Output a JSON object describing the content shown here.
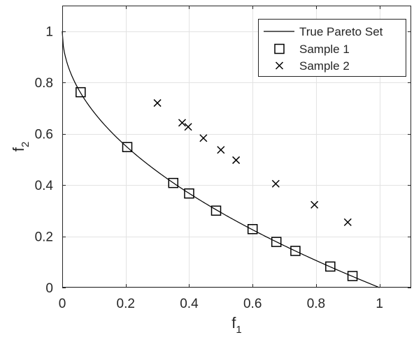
{
  "chart_data": {
    "type": "scatter",
    "title": "",
    "xlabel": "f",
    "xlabel_subscript": "1",
    "ylabel": "f",
    "ylabel_subscript": "2",
    "xlim": [
      0,
      1.1
    ],
    "ylim": [
      0,
      1.1
    ],
    "xticks": [
      0,
      0.2,
      0.4,
      0.6,
      0.8,
      1
    ],
    "yticks": [
      0,
      0.2,
      0.4,
      0.6,
      0.8,
      1
    ],
    "xtick_labels": [
      "0",
      "0.2",
      "0.4",
      "0.6",
      "0.8",
      "1"
    ],
    "ytick_labels": [
      "0",
      "0.2",
      "0.4",
      "0.6",
      "0.8",
      "1"
    ],
    "grid": true,
    "box": true,
    "legend_position": "top-right",
    "series": [
      {
        "name": "True Pareto Set",
        "kind": "curve",
        "marker": "line",
        "formula": "f2 = 1 - sqrt(f1)",
        "color": "#000000"
      },
      {
        "name": "Sample 1",
        "kind": "points",
        "marker": "square",
        "color": "#000000",
        "x": [
          0.058,
          0.205,
          0.35,
          0.4,
          0.485,
          0.6,
          0.675,
          0.735,
          0.845,
          0.915
        ],
        "y": [
          0.762,
          0.548,
          0.408,
          0.367,
          0.3,
          0.228,
          0.178,
          0.143,
          0.082,
          0.045
        ]
      },
      {
        "name": "Sample 2",
        "kind": "points",
        "marker": "x",
        "color": "#000000",
        "x": [
          0.3,
          0.378,
          0.397,
          0.445,
          0.5,
          0.548,
          0.673,
          0.795,
          0.9
        ],
        "y": [
          0.72,
          0.643,
          0.627,
          0.583,
          0.537,
          0.497,
          0.405,
          0.323,
          0.255
        ]
      }
    ]
  }
}
